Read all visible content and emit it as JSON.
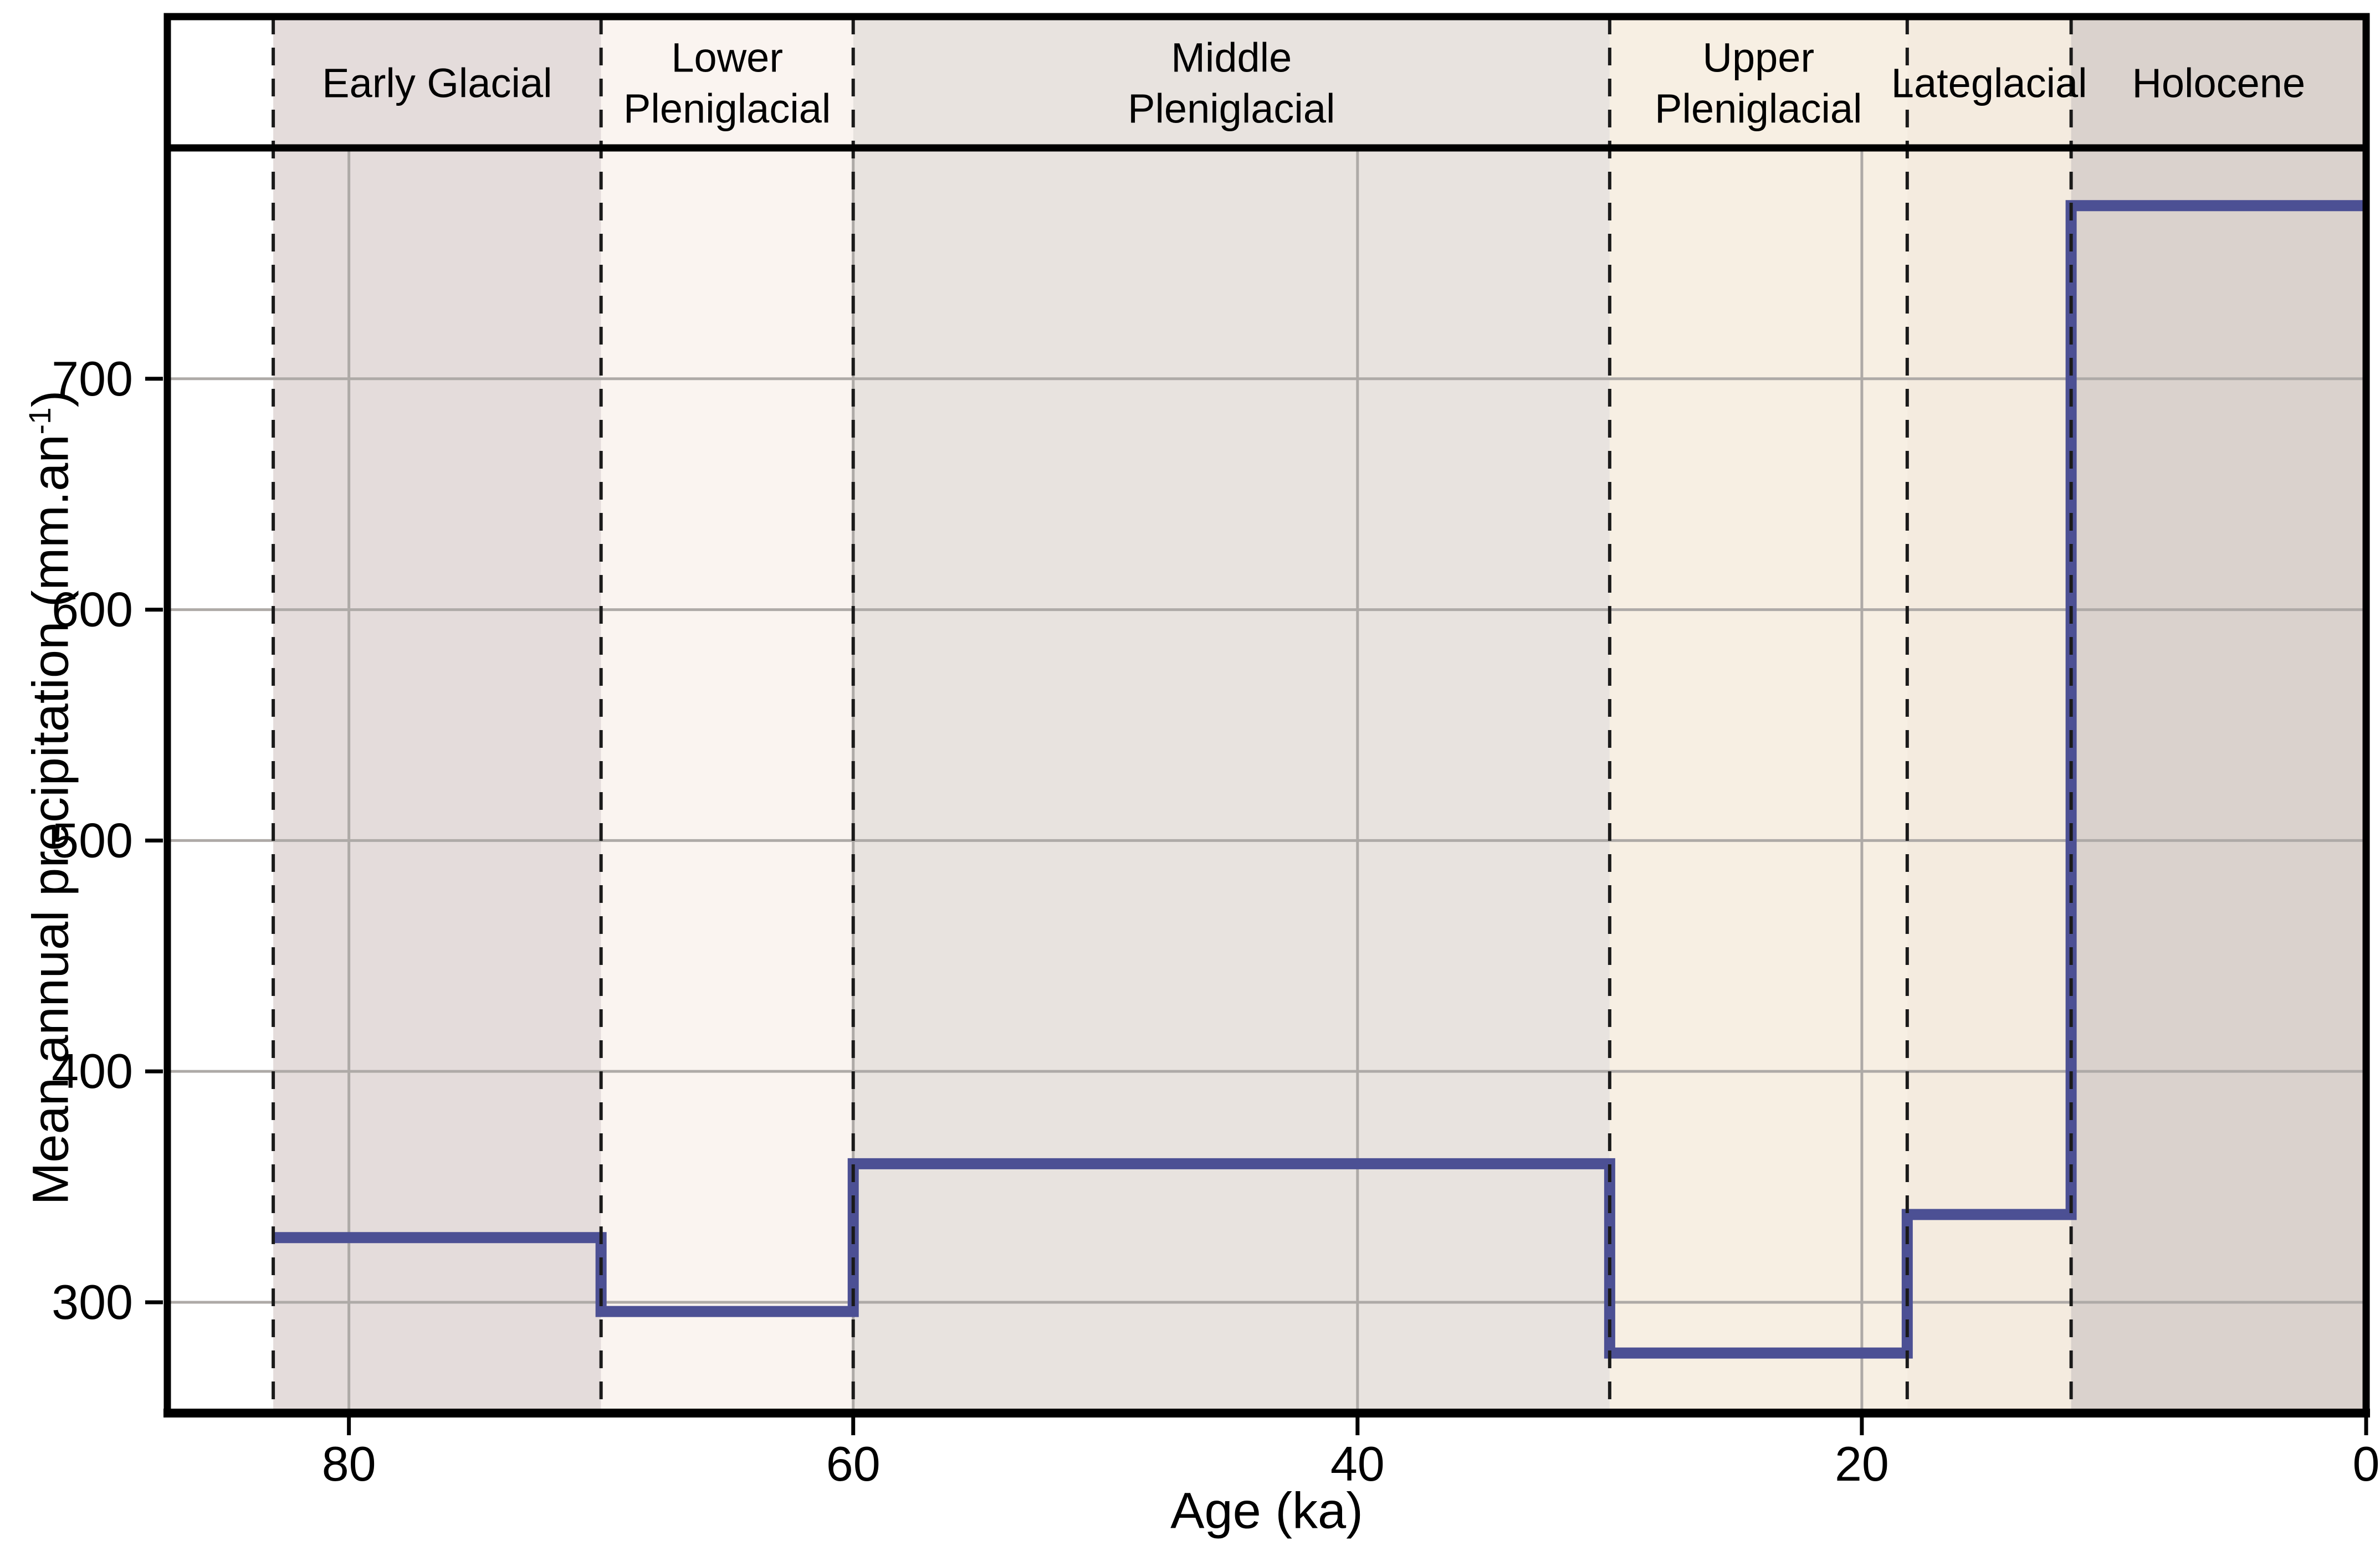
{
  "x_axis": {
    "title": "Age (ka)"
  },
  "y_axis": {
    "title_main": "Mean annual precipitation (mm.an",
    "title_sup": "-1",
    "title_suffix": ")"
  },
  "chart_data": {
    "type": "line",
    "subtype": "step",
    "title": "",
    "xlabel": "Age (ka)",
    "ylabel": "Mean annual precipitation (mm.an-1)",
    "x_ticks": [
      80,
      60,
      40,
      20,
      0
    ],
    "y_ticks": [
      300,
      400,
      500,
      600,
      700
    ],
    "xlim": [
      87.2,
      0
    ],
    "ylim": [
      252,
      800
    ],
    "grid": true,
    "x_axis_reversed": true,
    "line_color": "#4c5094",
    "grid_color": "#aeaaa7",
    "boundary_line_style": "dashed",
    "boundary_line_color": "#1a1a1a",
    "periods": [
      {
        "label": "Early Glacial",
        "start_ka": 83,
        "end_ka": 70,
        "precip_mm_yr": 328,
        "band_color": "#e4dcdb"
      },
      {
        "label": "Lower\nPleniglacial",
        "start_ka": 70,
        "end_ka": 60,
        "precip_mm_yr": 296,
        "band_color": "#faf4f0"
      },
      {
        "label": "Middle\nPleniglacial",
        "start_ka": 60,
        "end_ka": 30,
        "precip_mm_yr": 360,
        "band_color": "#e8e3df"
      },
      {
        "label": "Upper\nPleniglacial",
        "start_ka": 30,
        "end_ka": 18.2,
        "precip_mm_yr": 278,
        "band_color": "#f7efe3"
      },
      {
        "label": "Lateglacial",
        "start_ka": 18.2,
        "end_ka": 11.7,
        "precip_mm_yr": 338,
        "band_color": "#f4ebdf"
      },
      {
        "label": "Holocene",
        "start_ka": 11.7,
        "end_ka": 0,
        "precip_mm_yr": 775,
        "band_color": "#dad2cd"
      }
    ]
  }
}
